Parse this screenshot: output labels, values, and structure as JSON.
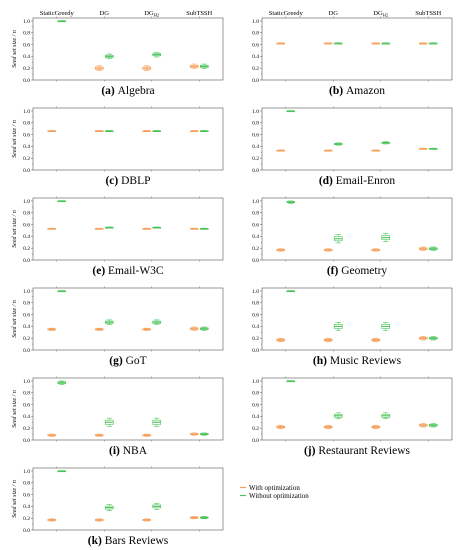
{
  "colors": {
    "with": "#f5a05a",
    "without": "#4cc45a",
    "axis": "#555555"
  },
  "legend": {
    "with": "With optimization",
    "without": "Without optimization"
  },
  "chart_data": [
    {
      "type": "box",
      "caption_letter": "(a)",
      "caption_name": "Algebra",
      "ylabel": "Seed set size / n",
      "ylim": [
        0,
        1.05
      ],
      "yticks": [
        "0.0",
        "0.2",
        "0.4",
        "0.6",
        "0.8",
        "1.0"
      ],
      "categories": [
        "StaticGreedy",
        "DG",
        "DG_H2",
        "SubTSSH"
      ],
      "category_labels": [
        "StaticGreedy",
        "DG",
        "DG",
        "SubTSSH"
      ],
      "category_subscripts": [
        "",
        "",
        "H2",
        ""
      ],
      "series": [
        {
          "values": [
            null,
            0.2,
            0.2,
            0.23
          ],
          "spread": [
            0,
            0.04,
            0.04,
            0.04
          ]
        },
        {
          "values": [
            1.0,
            0.4,
            0.43,
            0.23
          ],
          "spread": [
            0.005,
            0.04,
            0.04,
            0.04
          ]
        }
      ]
    },
    {
      "type": "box",
      "caption_letter": "(b)",
      "caption_name": "Amazon",
      "ylabel": "",
      "ylim": [
        0,
        1.05
      ],
      "yticks": [
        "0.0",
        "0.2",
        "0.4",
        "0.6",
        "0.8",
        "1.0"
      ],
      "categories": [
        "StaticGreedy",
        "DG",
        "DG_H2",
        "SubTSSH"
      ],
      "category_labels": [
        "StaticGreedy",
        "DG",
        "DG",
        "SubTSSH"
      ],
      "category_subscripts": [
        "",
        "",
        "H2",
        ""
      ],
      "series": [
        {
          "values": [
            0.62,
            0.62,
            0.62,
            0.62
          ],
          "spread": [
            0.01,
            0.01,
            0.01,
            0.01
          ]
        },
        {
          "values": [
            null,
            0.62,
            0.62,
            0.62
          ],
          "spread": [
            0,
            0.01,
            0.01,
            0.01
          ]
        }
      ]
    },
    {
      "type": "box",
      "caption_letter": "(c)",
      "caption_name": "DBLP",
      "ylabel": "Seed set size / n",
      "ylim": [
        0,
        1.05
      ],
      "yticks": [
        "0.0",
        "0.2",
        "0.4",
        "0.6",
        "0.8",
        "1.0"
      ],
      "categories": [
        "StaticGreedy",
        "DG",
        "DG_H2",
        "SubTSSH"
      ],
      "series": [
        {
          "values": [
            0.66,
            0.66,
            0.66,
            0.66
          ],
          "spread": [
            0.01,
            0.01,
            0.01,
            0.01
          ]
        },
        {
          "values": [
            null,
            0.66,
            0.66,
            0.66
          ],
          "spread": [
            0,
            0.01,
            0.01,
            0.01
          ]
        }
      ]
    },
    {
      "type": "box",
      "caption_letter": "(d)",
      "caption_name": "Email-Enron",
      "ylabel": "",
      "ylim": [
        0,
        1.05
      ],
      "yticks": [
        "0.0",
        "0.2",
        "0.4",
        "0.6",
        "0.8",
        "1.0"
      ],
      "categories": [
        "StaticGreedy",
        "DG",
        "DG_H2",
        "SubTSSH"
      ],
      "series": [
        {
          "values": [
            0.33,
            0.33,
            0.33,
            0.36
          ],
          "spread": [
            0.01,
            0.01,
            0.01,
            0.01
          ]
        },
        {
          "values": [
            1.0,
            0.44,
            0.46,
            0.36
          ],
          "spread": [
            0.005,
            0.02,
            0.02,
            0.01
          ]
        }
      ]
    },
    {
      "type": "box",
      "caption_letter": "(e)",
      "caption_name": "Email-W3C",
      "ylabel": "Seed set size / n",
      "ylim": [
        0,
        1.05
      ],
      "yticks": [
        "0.0",
        "0.2",
        "0.4",
        "0.6",
        "0.8",
        "1.0"
      ],
      "categories": [
        "StaticGreedy",
        "DG",
        "DG_H2",
        "SubTSSH"
      ],
      "series": [
        {
          "values": [
            0.53,
            0.53,
            0.53,
            0.53
          ],
          "spread": [
            0.01,
            0.01,
            0.01,
            0.01
          ]
        },
        {
          "values": [
            1.0,
            0.55,
            0.55,
            0.53
          ],
          "spread": [
            0.005,
            0.01,
            0.01,
            0.01
          ]
        }
      ]
    },
    {
      "type": "box",
      "caption_letter": "(f)",
      "caption_name": "Geometry",
      "ylabel": "",
      "ylim": [
        0,
        1.05
      ],
      "yticks": [
        "0.0",
        "0.2",
        "0.4",
        "0.6",
        "0.8",
        "1.0"
      ],
      "categories": [
        "StaticGreedy",
        "DG",
        "DG_H2",
        "SubTSSH"
      ],
      "series": [
        {
          "values": [
            0.17,
            0.17,
            0.17,
            0.19
          ],
          "spread": [
            0.02,
            0.02,
            0.02,
            0.03
          ]
        },
        {
          "values": [
            0.98,
            0.36,
            0.38,
            0.19
          ],
          "spread": [
            0.02,
            0.07,
            0.07,
            0.03
          ]
        }
      ]
    },
    {
      "type": "box",
      "caption_letter": "(g)",
      "caption_name": "GoT",
      "ylabel": "Seed set size / n",
      "ylim": [
        0,
        1.05
      ],
      "yticks": [
        "0.0",
        "0.2",
        "0.4",
        "0.6",
        "0.8",
        "1.0"
      ],
      "categories": [
        "StaticGreedy",
        "DG",
        "DG_H2",
        "SubTSSH"
      ],
      "series": [
        {
          "values": [
            0.35,
            0.35,
            0.35,
            0.36
          ],
          "spread": [
            0.02,
            0.02,
            0.02,
            0.03
          ]
        },
        {
          "values": [
            1.0,
            0.47,
            0.47,
            0.36
          ],
          "spread": [
            0.005,
            0.04,
            0.04,
            0.03
          ]
        }
      ]
    },
    {
      "type": "box",
      "caption_letter": "(h)",
      "caption_name": "Music Reviews",
      "ylabel": "",
      "ylim": [
        0,
        1.05
      ],
      "yticks": [
        "0.0",
        "0.2",
        "0.4",
        "0.6",
        "0.8",
        "1.0"
      ],
      "categories": [
        "StaticGreedy",
        "DG",
        "DG_H2",
        "SubTSSH"
      ],
      "series": [
        {
          "values": [
            0.17,
            0.17,
            0.17,
            0.2
          ],
          "spread": [
            0.03,
            0.03,
            0.03,
            0.03
          ]
        },
        {
          "values": [
            1.0,
            0.4,
            0.4,
            0.2
          ],
          "spread": [
            0.005,
            0.07,
            0.07,
            0.03
          ]
        }
      ]
    },
    {
      "type": "box",
      "caption_letter": "(i)",
      "caption_name": "NBA",
      "ylabel": "Seed set size / n",
      "ylim": [
        0,
        1.05
      ],
      "yticks": [
        "0.0",
        "0.2",
        "0.4",
        "0.6",
        "0.8",
        "1.0"
      ],
      "categories": [
        "StaticGreedy",
        "DG",
        "DG_H2",
        "SubTSSH"
      ],
      "series": [
        {
          "values": [
            0.08,
            0.08,
            0.08,
            0.1
          ],
          "spread": [
            0.02,
            0.02,
            0.02,
            0.02
          ]
        },
        {
          "values": [
            0.97,
            0.3,
            0.3,
            0.1
          ],
          "spread": [
            0.03,
            0.07,
            0.07,
            0.02
          ]
        }
      ]
    },
    {
      "type": "box",
      "caption_letter": "(j)",
      "caption_name": "Restaurant Reviews",
      "ylabel": "",
      "ylim": [
        0,
        1.05
      ],
      "yticks": [
        "0.0",
        "0.2",
        "0.4",
        "0.6",
        "0.8",
        "1.0"
      ],
      "categories": [
        "StaticGreedy",
        "DG",
        "DG_H2",
        "SubTSSH"
      ],
      "series": [
        {
          "values": [
            0.22,
            0.22,
            0.22,
            0.25
          ],
          "spread": [
            0.03,
            0.03,
            0.03,
            0.03
          ]
        },
        {
          "values": [
            1.0,
            0.41,
            0.41,
            0.25
          ],
          "spread": [
            0.005,
            0.05,
            0.05,
            0.03
          ]
        }
      ]
    },
    {
      "type": "box",
      "caption_letter": "(k)",
      "caption_name": "Bars Reviews",
      "ylabel": "Seed set size / n",
      "ylim": [
        0,
        1.05
      ],
      "yticks": [
        "0.0",
        "0.2",
        "0.4",
        "0.6",
        "0.8",
        "1.0"
      ],
      "categories": [
        "StaticGreedy",
        "DG",
        "DG_H2",
        "SubTSSH"
      ],
      "series": [
        {
          "values": [
            0.17,
            0.17,
            0.17,
            0.21
          ],
          "spread": [
            0.02,
            0.02,
            0.02,
            0.02
          ]
        },
        {
          "values": [
            1.0,
            0.38,
            0.4,
            0.21
          ],
          "spread": [
            0.005,
            0.05,
            0.05,
            0.02
          ]
        }
      ]
    }
  ]
}
